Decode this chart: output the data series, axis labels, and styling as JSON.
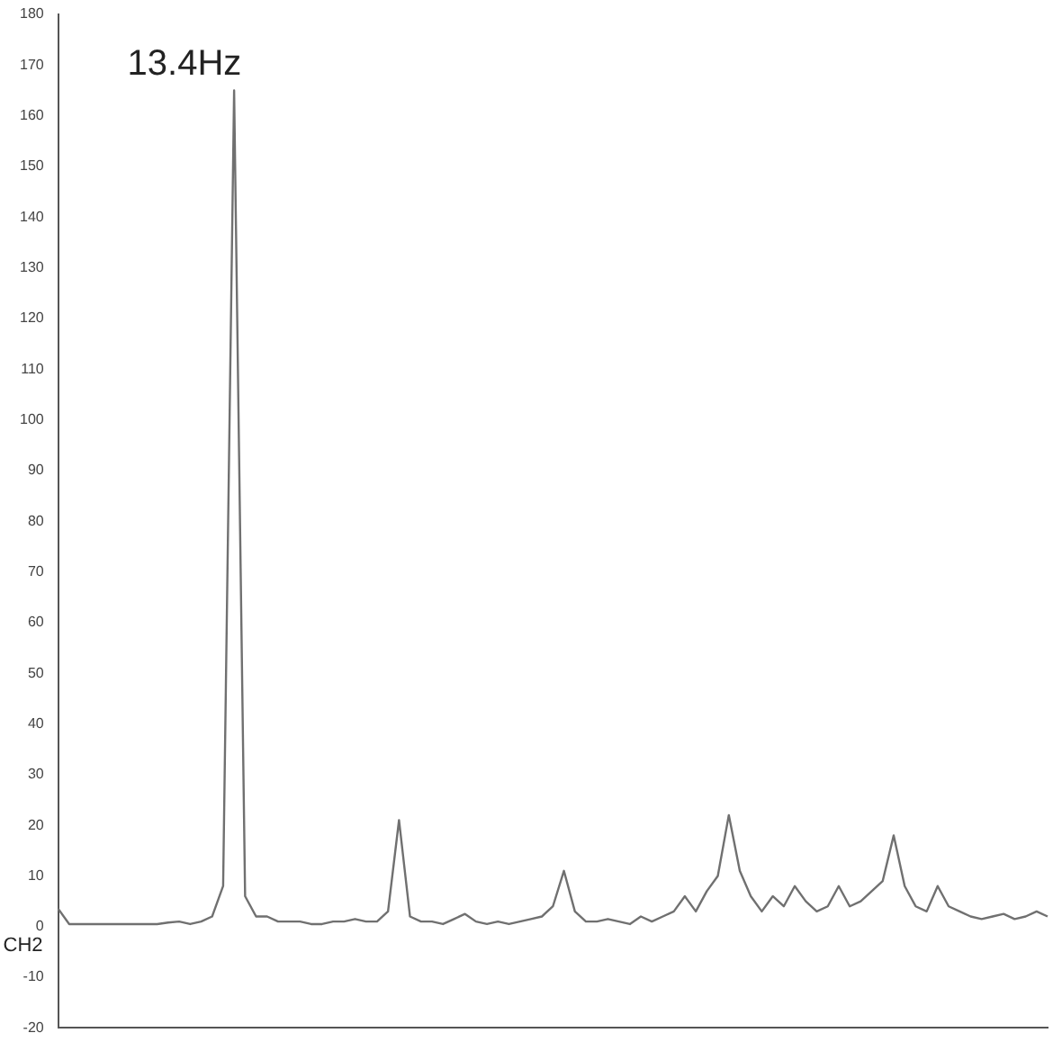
{
  "chart_data": {
    "type": "line",
    "categories": [
      null,
      null,
      null,
      null,
      null,
      null,
      null,
      null,
      null,
      null,
      null,
      null,
      null,
      null,
      null,
      null,
      null,
      null,
      null,
      null,
      null,
      null,
      null,
      null,
      null,
      null,
      null,
      null,
      null,
      null,
      null,
      null,
      null,
      null,
      null,
      null,
      null,
      null,
      null,
      null,
      null,
      null,
      null,
      null,
      null,
      null,
      null,
      null,
      null,
      null,
      null,
      null,
      null,
      null,
      null,
      null,
      null,
      null,
      null,
      null,
      null,
      null,
      null,
      null,
      null,
      null,
      null,
      null,
      null,
      null,
      null,
      null,
      null,
      null,
      null,
      null,
      null,
      null,
      null,
      null,
      null,
      null,
      null,
      null,
      null,
      null,
      null,
      null,
      null,
      null,
      null
    ],
    "series": [
      {
        "color": "#707070",
        "values": [
          3.5,
          0.5,
          0.5,
          0.5,
          0.5,
          0.5,
          0.5,
          0.5,
          0.5,
          0.5,
          0.8,
          1,
          0.5,
          1,
          2,
          8,
          165,
          6,
          2,
          2,
          1,
          1,
          1,
          0.5,
          0.5,
          1,
          1,
          1.5,
          1,
          1,
          3,
          21,
          2,
          1,
          1,
          0.5,
          1.5,
          2.5,
          1,
          0.5,
          1,
          0.5,
          1,
          1.5,
          2,
          4,
          11,
          3,
          1,
          1,
          1.5,
          1,
          0.5,
          2,
          1,
          2,
          3,
          6,
          3,
          7,
          10,
          22,
          11,
          6,
          3,
          6,
          4,
          8,
          5,
          3,
          4,
          8,
          4,
          5,
          7,
          9,
          18,
          8,
          4,
          3,
          8,
          4,
          3,
          2,
          1.5,
          2,
          2.5,
          1.5,
          2,
          3,
          2
        ]
      }
    ],
    "ylim": [
      -20,
      180
    ],
    "yticks": [
      -20,
      -10,
      0,
      10,
      20,
      30,
      40,
      50,
      60,
      70,
      80,
      90,
      100,
      110,
      120,
      130,
      140,
      150,
      160,
      170,
      180
    ],
    "tick_labels": "y",
    "grid": false,
    "legend": false,
    "marker": "none",
    "line_style": "solid",
    "annotations": [
      "13.4Hz",
      "CH2"
    ]
  }
}
